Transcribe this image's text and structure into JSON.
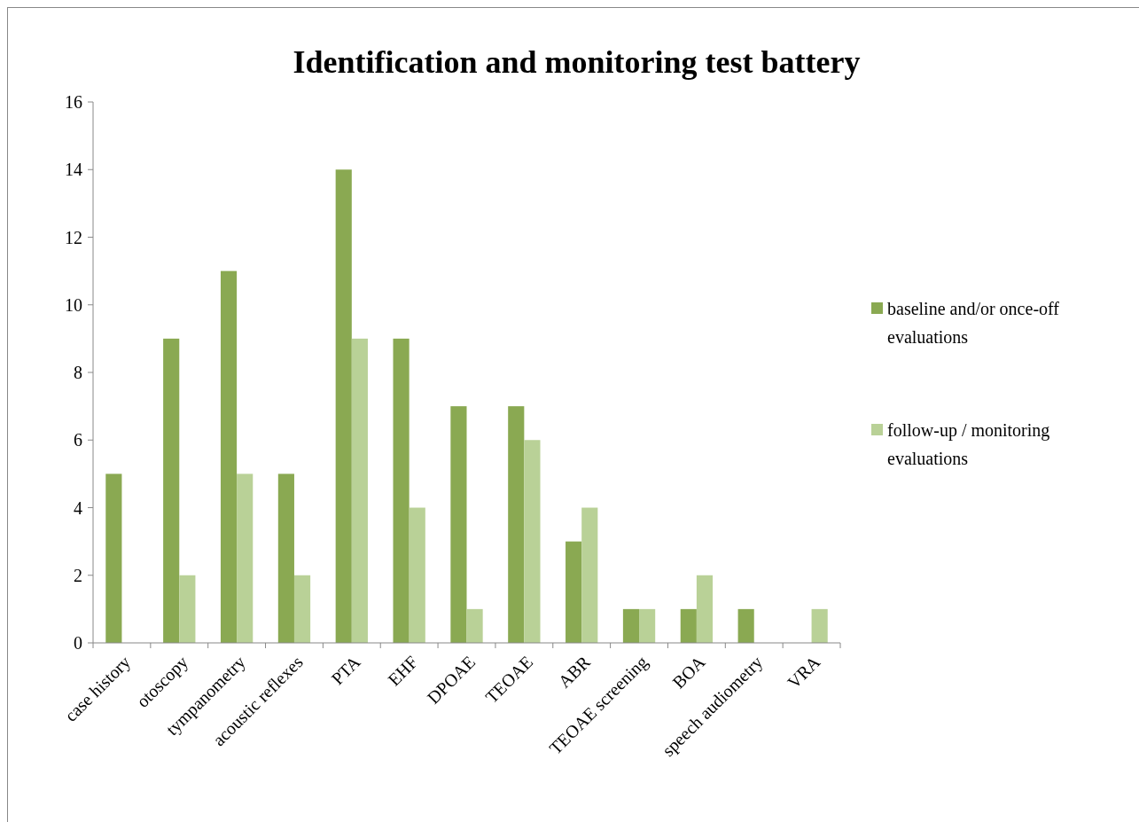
{
  "chart_data": {
    "type": "bar",
    "title": "Identification and monitoring test battery",
    "categories": [
      "case history",
      "otoscopy",
      "tympanometry",
      "acoustic reflexes",
      "PTA",
      "EHF",
      "DPOAE",
      "TEOAE",
      "ABR",
      "TEOAE screening",
      "BOA",
      "speech audiometry",
      "VRA"
    ],
    "series": [
      {
        "name": "baseline and/or once-off evaluations",
        "color": "#8aa952",
        "values": [
          5,
          9,
          11,
          5,
          14,
          9,
          7,
          7,
          3,
          1,
          1,
          1,
          0
        ]
      },
      {
        "name": "follow-up / monitoring evaluations",
        "color": "#b9d197",
        "values": [
          0,
          2,
          5,
          2,
          9,
          4,
          1,
          6,
          4,
          1,
          2,
          0,
          1
        ]
      }
    ],
    "ylim": [
      0,
      16
    ],
    "yticks": [
      0,
      2,
      4,
      6,
      8,
      10,
      12,
      14,
      16
    ],
    "grid": false,
    "legend": "right"
  }
}
